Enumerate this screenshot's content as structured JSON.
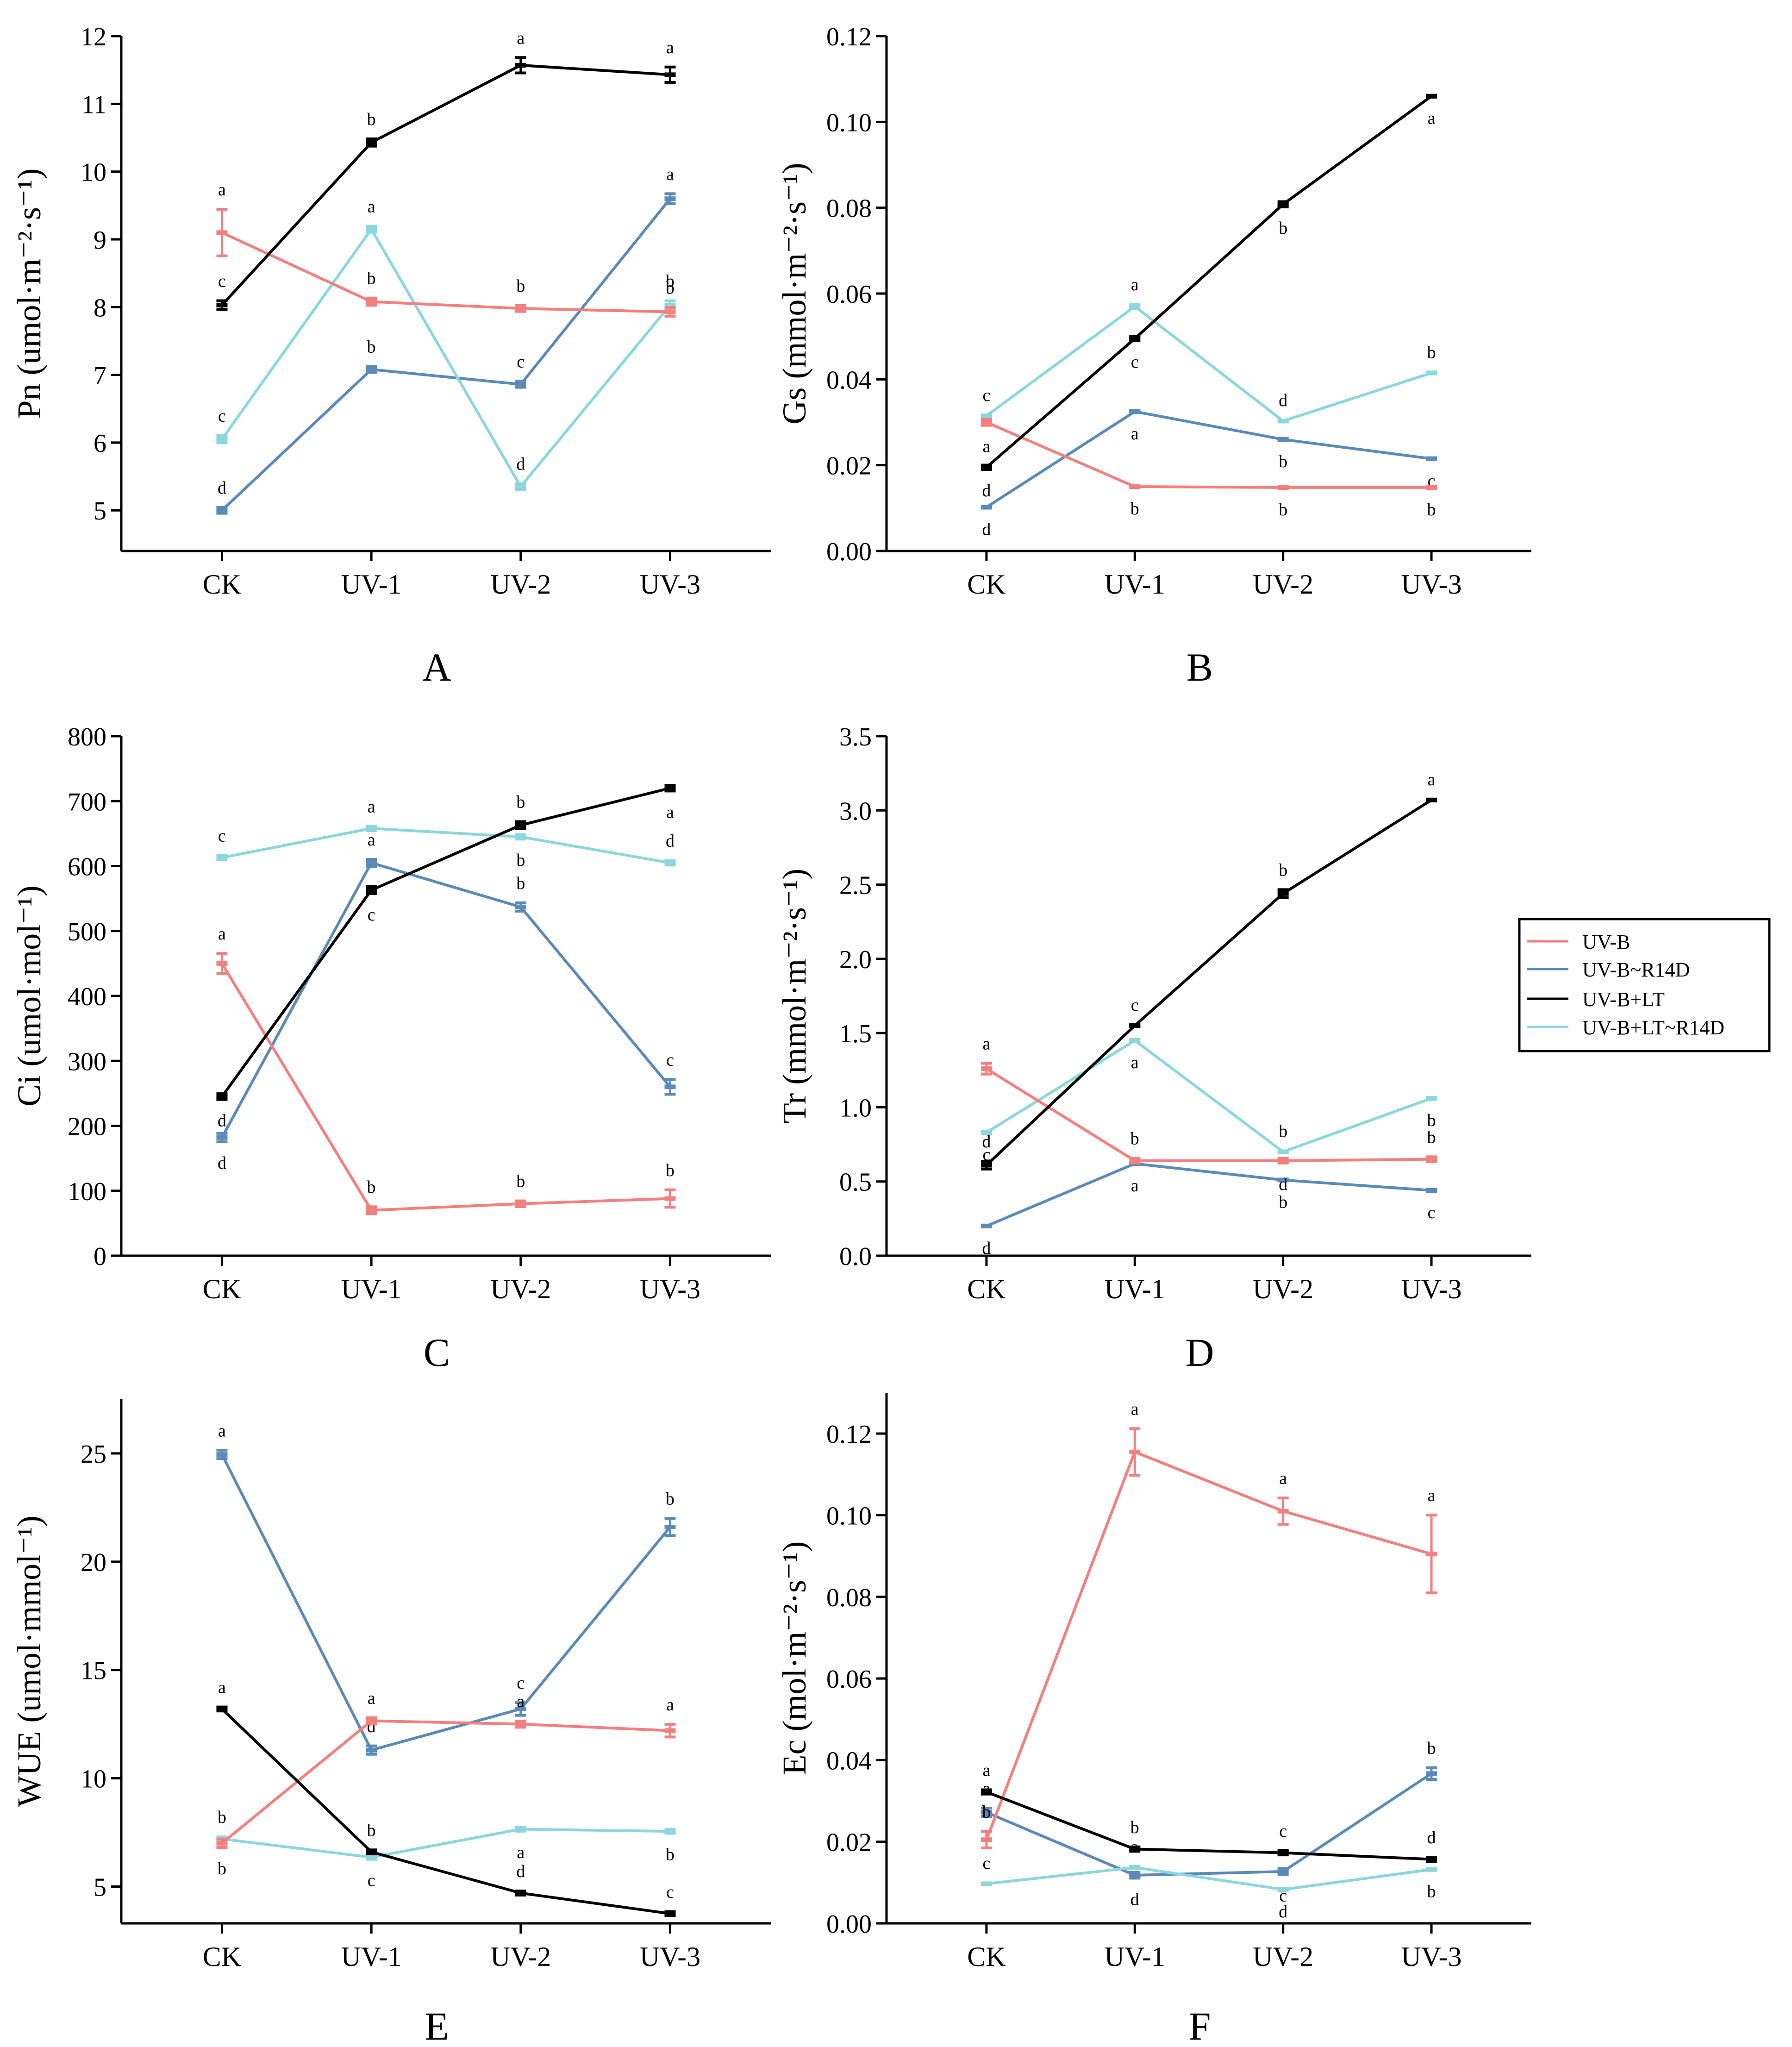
{
  "series_names": [
    "UV-B",
    "UV-B~R14D",
    "UV-B+LT",
    "UV-B+LT~R14D"
  ],
  "series_colors": [
    "#f47f7f",
    "#5a8ab8",
    "#000000",
    "#8cd7de"
  ],
  "legend_position": "right-middle",
  "chart_data": [
    {
      "type": "line",
      "panel_label": "A",
      "title": "",
      "xlabel": "",
      "ylabel": "Pn (umol·m⁻²·s⁻¹)",
      "ylim": [
        4.4,
        12
      ],
      "yticks": [
        5,
        6,
        7,
        8,
        9,
        10,
        11,
        12
      ],
      "categories": [
        "CK",
        "UV-1",
        "UV-2",
        "UV-3"
      ],
      "series": [
        {
          "name": "UV-B",
          "values": [
            9.1,
            8.08,
            7.98,
            7.93
          ],
          "errors": [
            0.33,
            0.04,
            0.03,
            0.05
          ],
          "letters": [
            "a",
            "b",
            "b",
            "b"
          ],
          "letter_pos": [
            "above",
            "above",
            "above",
            "above"
          ]
        },
        {
          "name": "UV-B~R14D",
          "values": [
            5.0,
            7.08,
            6.86,
            9.6
          ],
          "errors": [
            0.03,
            0.03,
            0.03,
            0.06
          ],
          "letters": [
            "d",
            "b",
            "c",
            "a"
          ],
          "letter_pos": [
            "above",
            "above",
            "above",
            "above"
          ]
        },
        {
          "name": "UV-B+LT",
          "values": [
            8.03,
            10.43,
            11.57,
            11.43
          ],
          "errors": [
            0.05,
            0.04,
            0.1,
            0.1
          ],
          "letters": [
            "c",
            "b",
            "a",
            "a"
          ],
          "letter_pos": [
            "above",
            "above",
            "above",
            "above"
          ]
        },
        {
          "name": "UV-B+LT~R14D",
          "values": [
            6.05,
            9.15,
            5.35,
            8.03
          ],
          "errors": [
            0.04,
            0.03,
            0.03,
            0.05
          ],
          "letters": [
            "c",
            "a",
            "d",
            "b"
          ],
          "letter_pos": [
            "above",
            "above",
            "above",
            "above"
          ]
        }
      ]
    },
    {
      "type": "line",
      "panel_label": "B",
      "title": "",
      "xlabel": "",
      "ylabel": "Gs (mmol·m⁻²·s⁻¹)",
      "ylim": [
        0,
        0.12
      ],
      "yticks": [
        0.0,
        0.02,
        0.04,
        0.06,
        0.08,
        0.1,
        0.12
      ],
      "decimals": 2,
      "categories": [
        "CK",
        "UV-1",
        "UV-2",
        "UV-3"
      ],
      "series": [
        {
          "name": "UV-B",
          "values": [
            0.03,
            0.015,
            0.0148,
            0.0148
          ],
          "errors": [
            0.0005,
            0,
            0,
            0
          ],
          "letters": [
            "a",
            "b",
            "b",
            "b"
          ],
          "letter_pos": [
            "below",
            "below",
            "below",
            "below"
          ]
        },
        {
          "name": "UV-B~R14D",
          "values": [
            0.0102,
            0.0325,
            0.026,
            0.0215
          ],
          "errors": [
            0,
            0,
            0,
            0
          ],
          "letters": [
            "d",
            "a",
            "b",
            "c"
          ],
          "letter_pos": [
            "below",
            "below",
            "below",
            "below"
          ]
        },
        {
          "name": "UV-B+LT",
          "values": [
            0.0195,
            0.0495,
            0.0808,
            0.106
          ],
          "errors": [
            0.0003,
            0.0003,
            0.0004,
            0
          ],
          "letters": [
            "d",
            "c",
            "b",
            "a"
          ],
          "letter_pos": [
            "below",
            "below",
            "below",
            "below"
          ]
        },
        {
          "name": "UV-B+LT~R14D",
          "values": [
            0.0315,
            0.057,
            0.0303,
            0.0415
          ],
          "errors": [
            0,
            0.0003,
            0,
            0
          ],
          "letters": [
            "c",
            "a",
            "d",
            "b"
          ],
          "letter_pos": [
            "above",
            "above",
            "above",
            "above"
          ]
        }
      ]
    },
    {
      "type": "line",
      "panel_label": "C",
      "title": "",
      "xlabel": "",
      "ylabel": "Ci (umol·mol⁻¹)",
      "ylim": [
        0,
        800
      ],
      "yticks": [
        0,
        100,
        200,
        300,
        400,
        500,
        600,
        700,
        800
      ],
      "categories": [
        "CK",
        "UV-1",
        "UV-2",
        "UV-3"
      ],
      "series": [
        {
          "name": "UV-B",
          "values": [
            450,
            70,
            80,
            88
          ],
          "errors": [
            14,
            4,
            3,
            12
          ],
          "letters": [
            "a",
            "b",
            "b",
            "b"
          ],
          "letter_pos": [
            "above",
            "above",
            "above",
            "above"
          ]
        },
        {
          "name": "UV-B~R14D",
          "values": [
            182,
            605,
            537,
            260
          ],
          "errors": [
            5,
            4,
            5,
            10
          ],
          "letters": [
            "d",
            "a",
            "b",
            "c"
          ],
          "letter_pos": [
            "below",
            "above",
            "above",
            "above"
          ]
        },
        {
          "name": "UV-B+LT",
          "values": [
            245,
            563,
            663,
            720
          ],
          "errors": [
            3,
            4,
            4,
            3
          ],
          "letters": [
            "d",
            "c",
            "b",
            "a"
          ],
          "letter_pos": [
            "below",
            "below",
            "above",
            "below"
          ]
        },
        {
          "name": "UV-B+LT~R14D",
          "values": [
            613,
            658,
            645,
            605
          ],
          "errors": [
            2,
            2,
            2,
            2
          ],
          "letters": [
            "c",
            "a",
            "b",
            "d"
          ],
          "letter_pos": [
            "above",
            "above",
            "below",
            "above"
          ]
        }
      ]
    },
    {
      "type": "line",
      "panel_label": "D",
      "title": "",
      "xlabel": "",
      "ylabel": "Tr (mmol·m⁻²·s⁻¹)",
      "ylim": [
        0,
        3.5
      ],
      "yticks": [
        0.0,
        0.5,
        1.0,
        1.5,
        2.0,
        2.5,
        3.0,
        3.5
      ],
      "decimals": 1,
      "categories": [
        "CK",
        "UV-1",
        "UV-2",
        "UV-3"
      ],
      "series": [
        {
          "name": "UV-B",
          "values": [
            1.26,
            0.64,
            0.64,
            0.65
          ],
          "errors": [
            0.03,
            0.01,
            0.01,
            0.01
          ],
          "letters": [
            "a",
            "b",
            "d",
            "b"
          ],
          "letter_pos": [
            "above",
            "above",
            "below",
            "above"
          ]
        },
        {
          "name": "UV-B~R14D",
          "values": [
            0.2,
            0.62,
            0.51,
            0.44
          ],
          "errors": [
            0,
            0,
            0,
            0
          ],
          "letters": [
            "d",
            "a",
            "b",
            "c"
          ],
          "letter_pos": [
            "below",
            "below",
            "below",
            "below"
          ]
        },
        {
          "name": "UV-B+LT",
          "values": [
            0.61,
            1.55,
            2.44,
            3.07
          ],
          "errors": [
            0.02,
            0,
            0.02,
            0
          ],
          "letters": [
            "d",
            "c",
            "b",
            "a"
          ],
          "letter_pos": [
            "above",
            "above",
            "above",
            "above"
          ]
        },
        {
          "name": "UV-B+LT~R14D",
          "values": [
            0.83,
            1.45,
            0.7,
            1.06
          ],
          "errors": [
            0,
            0,
            0,
            0
          ],
          "letters": [
            "c",
            "a",
            "b",
            "b"
          ],
          "letter_pos": [
            "below",
            "below",
            "above",
            "below"
          ]
        }
      ]
    },
    {
      "type": "line",
      "panel_label": "E",
      "title": "",
      "xlabel": "",
      "ylabel": "WUE (umol·mmol⁻¹)",
      "ylim": [
        3.3,
        27.5
      ],
      "yticks": [
        5,
        10,
        15,
        20,
        25
      ],
      "categories": [
        "CK",
        "UV-1",
        "UV-2",
        "UV-3"
      ],
      "series": [
        {
          "name": "UV-B",
          "values": [
            7.0,
            12.65,
            12.5,
            12.2
          ],
          "errors": [
            0.15,
            0.1,
            0.1,
            0.25
          ],
          "letters": [
            "b",
            "a",
            "a",
            "a"
          ],
          "letter_pos": [
            "below",
            "above",
            "above",
            "above"
          ]
        },
        {
          "name": "UV-B~R14D",
          "values": [
            24.95,
            11.3,
            13.2,
            21.6
          ],
          "errors": [
            0.15,
            0.15,
            0.25,
            0.35
          ],
          "letters": [
            "a",
            "d",
            "c",
            "b"
          ],
          "letter_pos": [
            "above",
            "above",
            "above",
            "above"
          ]
        },
        {
          "name": "UV-B+LT",
          "values": [
            13.2,
            6.6,
            4.7,
            3.75
          ],
          "errors": [
            0.05,
            0.05,
            0.05,
            0.05
          ],
          "letters": [
            "a",
            "b",
            "d",
            "c"
          ],
          "letter_pos": [
            "above",
            "above",
            "above",
            "above"
          ]
        },
        {
          "name": "UV-B+LT~R14D",
          "values": [
            7.2,
            6.35,
            7.65,
            7.55
          ],
          "errors": [
            0.05,
            0.05,
            0.05,
            0.05
          ],
          "letters": [
            "b",
            "c",
            "a",
            "b"
          ],
          "letter_pos": [
            "above",
            "below",
            "below",
            "below"
          ]
        }
      ]
    },
    {
      "type": "line",
      "panel_label": "F",
      "title": "",
      "xlabel": "",
      "ylabel": "Ec (mol·m⁻²·s⁻¹)",
      "ylim": [
        0,
        0.13
      ],
      "yticks": [
        0.0,
        0.02,
        0.04,
        0.06,
        0.08,
        0.1,
        0.12
      ],
      "decimals": 2,
      "categories": [
        "CK",
        "UV-1",
        "UV-2",
        "UV-3"
      ],
      "series": [
        {
          "name": "UV-B",
          "values": [
            0.0205,
            0.1155,
            0.101,
            0.0905
          ],
          "errors": [
            0.0018,
            0.0055,
            0.003,
            0.0093
          ],
          "letters": [
            "b",
            "a",
            "a",
            "a"
          ],
          "letter_pos": [
            "above",
            "above",
            "above",
            "above"
          ]
        },
        {
          "name": "UV-B~R14D",
          "values": [
            0.0272,
            0.0118,
            0.0127,
            0.0367
          ],
          "errors": [
            0.0008,
            0.0005,
            0.0005,
            0.0012
          ],
          "letters": [
            "a",
            "d",
            "c",
            "b"
          ],
          "letter_pos": [
            "above",
            "below",
            "below",
            "above"
          ]
        },
        {
          "name": "UV-B+LT",
          "values": [
            0.0322,
            0.0182,
            0.0173,
            0.0157
          ],
          "errors": [
            0.0003,
            0.0003,
            0.0003,
            0.0003
          ],
          "letters": [
            "a",
            "b",
            "c",
            "d"
          ],
          "letter_pos": [
            "above",
            "above",
            "above",
            "above"
          ]
        },
        {
          "name": "UV-B+LT~R14D",
          "values": [
            0.0097,
            0.0137,
            0.0083,
            0.0132
          ],
          "errors": [
            0,
            0,
            0,
            0
          ],
          "letters": [
            "c",
            "a",
            "d",
            "b"
          ],
          "letter_pos": [
            "above",
            "above",
            "below",
            "below"
          ]
        }
      ]
    }
  ]
}
